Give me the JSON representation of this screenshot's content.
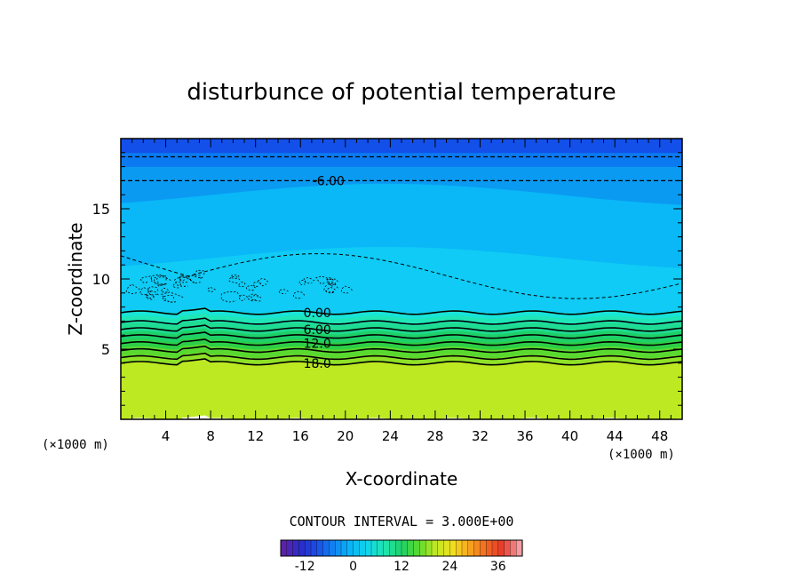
{
  "chart_data": {
    "type": "heatmap",
    "title": "disturbunce of potential temperature",
    "xlabel": "X-coordinate",
    "ylabel": "Z-coordinate",
    "x_unit_left": "(×1000 m)",
    "x_unit_right": "(×1000 m)",
    "xlim": [
      0,
      50
    ],
    "ylim": [
      0,
      20
    ],
    "x_ticks": [
      "4",
      "8",
      "12",
      "16",
      "20",
      "24",
      "28",
      "32",
      "36",
      "40",
      "44",
      "48"
    ],
    "y_ticks": [
      "5",
      "10",
      "15"
    ],
    "contour_interval_text": "CONTOUR INTERVAL = 3.000E+00",
    "contour_labels": [
      {
        "text": "-6.00",
        "x": 18.5,
        "z": 17.0
      },
      {
        "text": "0.00",
        "x": 17.5,
        "z": 7.6
      },
      {
        "text": "6.00",
        "x": 17.5,
        "z": 6.4
      },
      {
        "text": "12.0",
        "x": 17.5,
        "z": 5.4
      },
      {
        "text": "18.0",
        "x": 17.5,
        "z": 4.0
      }
    ],
    "field_bands": [
      {
        "z0": 0,
        "z1": 4.0,
        "value": 24,
        "color": "#bde923"
      },
      {
        "z0": 4.0,
        "z1": 4.5,
        "value": 21,
        "color": "#8fe127"
      },
      {
        "z0": 4.5,
        "z1": 5.1,
        "value": 18,
        "color": "#59d92f"
      },
      {
        "z0": 5.1,
        "z1": 5.6,
        "value": 15,
        "color": "#2ccf46"
      },
      {
        "z0": 5.6,
        "z1": 6.2,
        "value": 12,
        "color": "#1ed068"
      },
      {
        "z0": 6.2,
        "z1": 6.8,
        "value": 9,
        "color": "#1fdc93"
      },
      {
        "z0": 6.8,
        "z1": 7.3,
        "value": 6,
        "color": "#1fe6b8"
      },
      {
        "z0": 7.3,
        "z1": 7.7,
        "value": 3,
        "color": "#18e4d8"
      },
      {
        "z0": 7.7,
        "z1": 11.5,
        "value": 0,
        "color": "#0fcbf5"
      },
      {
        "z0": 11.5,
        "z1": 16.0,
        "value": -3,
        "color": "#0ab7f7"
      },
      {
        "z0": 16.0,
        "z1": 18.0,
        "value": -6,
        "color": "#0a9af2"
      },
      {
        "z0": 18.0,
        "z1": 19.0,
        "value": -9,
        "color": "#0b7af0"
      },
      {
        "z0": 19.0,
        "z1": 20.0,
        "value": -12,
        "color": "#1350ea"
      }
    ],
    "colorbar": {
      "min": -18,
      "max": 42,
      "ticks": [
        "-12",
        "0",
        "12",
        "24",
        "36"
      ],
      "colors": [
        "#5a22a8",
        "#2a2cc8",
        "#1a4ee6",
        "#0f86f2",
        "#0ab7f7",
        "#10d6e8",
        "#1fe6b0",
        "#1ed068",
        "#59d92f",
        "#bde923",
        "#f0e020",
        "#f7a81e",
        "#f06a20",
        "#e53a2a",
        "#f59ca0"
      ]
    }
  }
}
